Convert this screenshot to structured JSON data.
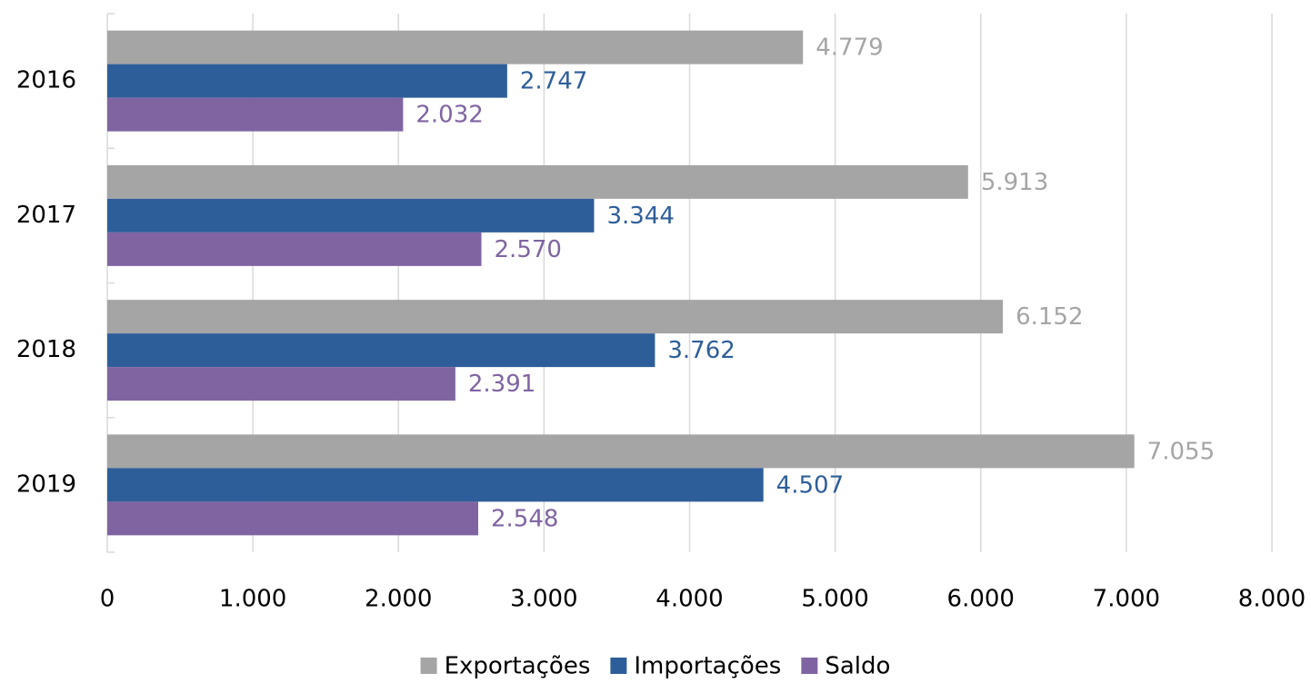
{
  "chart_data": {
    "type": "bar",
    "orientation": "horizontal",
    "categories": [
      "2016",
      "2017",
      "2018",
      "2019"
    ],
    "series": [
      {
        "name": "Exportações",
        "color": "#a5a5a5",
        "values": [
          4779,
          5913,
          6152,
          7055
        ],
        "value_labels": [
          "4.779",
          "5.913",
          "6.152",
          "7.055"
        ]
      },
      {
        "name": "Importações",
        "color": "#2e5e99",
        "values": [
          2747,
          3344,
          3762,
          4507
        ],
        "value_labels": [
          "2.747",
          "3.344",
          "3.762",
          "4.507"
        ]
      },
      {
        "name": "Saldo",
        "color": "#8064a2",
        "values": [
          2032,
          2570,
          2391,
          2548
        ],
        "value_labels": [
          "2.032",
          "2.570",
          "2.391",
          "2.548"
        ]
      }
    ],
    "xlim": [
      0,
      8000
    ],
    "xticks": [
      0,
      {
        "value": 1000,
        "label": "1.000"
      },
      {
        "value": 2000,
        "label": "2.000"
      },
      {
        "value": 3000,
        "label": "3.000"
      },
      {
        "value": 4000,
        "label": "4.000"
      },
      {
        "value": 5000,
        "label": "5.000"
      },
      {
        "value": 6000,
        "label": "6.000"
      },
      {
        "value": 7000,
        "label": "7.000"
      },
      {
        "value": 8000,
        "label": "8.000"
      }
    ],
    "grid": true,
    "legend": "bottom"
  }
}
